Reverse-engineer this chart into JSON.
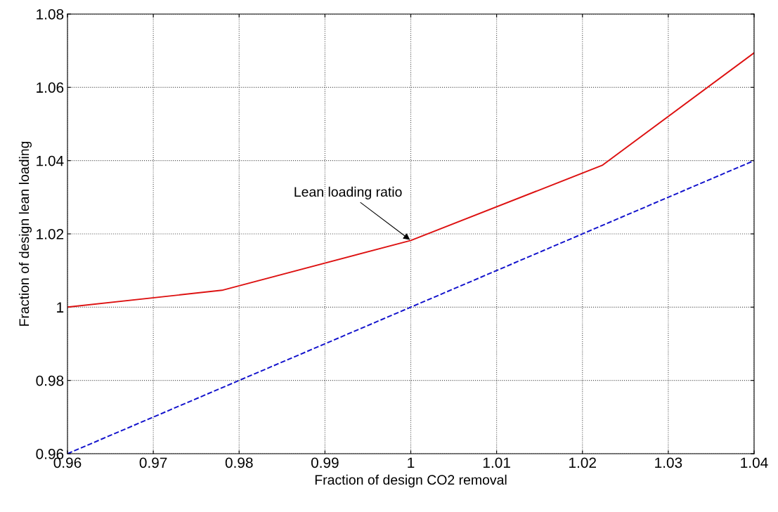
{
  "chart_data": {
    "type": "line",
    "xlabel": "Fraction of design CO2 removal",
    "ylabel": "Fraction of design lean loading",
    "xlim": [
      0.96,
      1.04
    ],
    "xticks": [
      0.96,
      0.97,
      0.98,
      0.99,
      1,
      1.01,
      1.02,
      1.03,
      1.04
    ],
    "ylim": [
      0.96,
      1.08
    ],
    "yticks": [
      0.96,
      0.98,
      1,
      1.02,
      1.04,
      1.06,
      1.08
    ],
    "grid": true,
    "marker": "none",
    "series": [
      {
        "color": "#dd1111",
        "line_style": "solid",
        "x": [
          0.96,
          0.978,
          1.0,
          1.0223,
          1.04
        ],
        "values": [
          1.0,
          1.0046,
          1.0182,
          1.0387,
          1.0694
        ]
      },
      {
        "color": "#1111cc",
        "line_style": "dashed",
        "x": [
          0.96,
          1.04
        ],
        "values": [
          0.96,
          1.04
        ]
      }
    ],
    "annotations": [
      {
        "text": "Lean loading ratio",
        "x": 1.0,
        "y": 1.0182
      }
    ]
  }
}
